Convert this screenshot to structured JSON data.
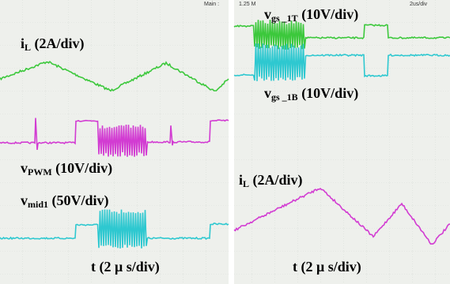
{
  "left_panel": {
    "header": "Main :",
    "traces": [
      {
        "symbol": "i",
        "subscript": "L",
        "scale": "(2A/div)"
      },
      {
        "symbol": "v",
        "subscript": "PWM",
        "scale": "(10V/div)"
      },
      {
        "symbol": "v",
        "subscript": "mid1",
        "scale": "(50V/div)"
      }
    ],
    "time_scale": "t (2 μ s/div)"
  },
  "right_panel": {
    "header_left": "1.25 M",
    "header_right": "2us/div",
    "traces": [
      {
        "symbol": "v",
        "subscript": "gs _1T",
        "scale": "(10V/div)"
      },
      {
        "symbol": "v",
        "subscript": "gs _1B",
        "scale": "(10V/div)"
      },
      {
        "symbol": "i",
        "subscript": "L",
        "scale": "(2A/div)"
      }
    ],
    "time_scale": "t (2 μ s/div)"
  }
}
